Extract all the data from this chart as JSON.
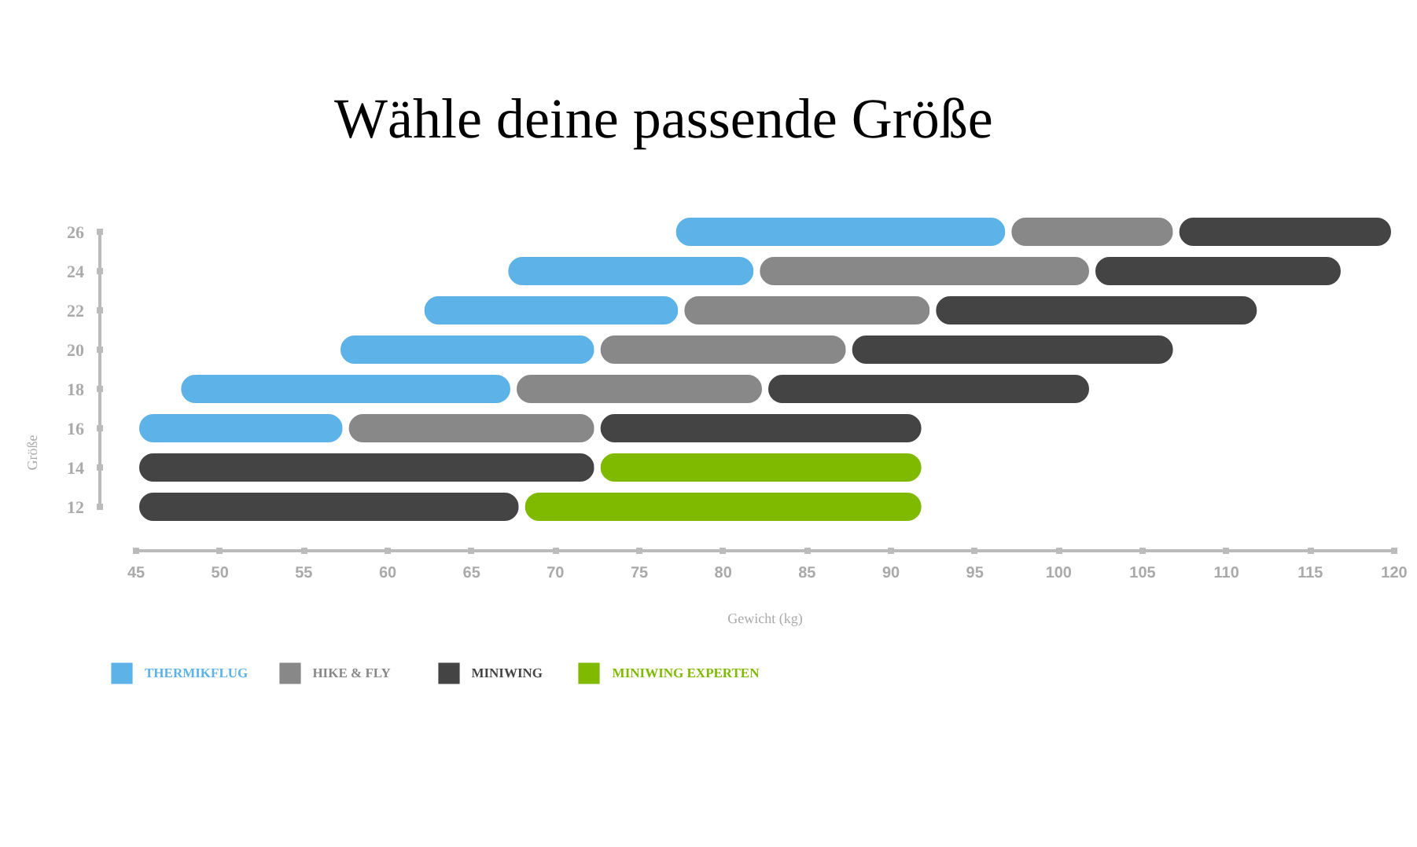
{
  "chart_data": {
    "type": "bar",
    "orientation": "horizontal",
    "title": "Wähle deine passende Größe",
    "xlabel": "Gewicht (kg)",
    "ylabel": "Größe",
    "categories": [
      "26",
      "24",
      "22",
      "20",
      "18",
      "16",
      "14",
      "12"
    ],
    "xlim": [
      45,
      120
    ],
    "xticks": [
      45,
      50,
      55,
      60,
      65,
      70,
      75,
      80,
      85,
      90,
      95,
      100,
      105,
      110,
      115,
      120
    ],
    "grid": false,
    "legend": "bottom left",
    "series": [
      {
        "name": "THERMIKFLUG",
        "color": "#5db3e8",
        "base": [
          77,
          67,
          62,
          57,
          47.5,
          45,
          null,
          null
        ],
        "values": [
          20,
          15,
          15.5,
          15.5,
          20,
          12.5,
          null,
          null
        ]
      },
      {
        "name": "HIKE & FLY",
        "color": "#888888",
        "base": [
          97,
          82,
          77.5,
          72.5,
          67.5,
          57.5,
          null,
          null
        ],
        "values": [
          10,
          20,
          15,
          15,
          15,
          15,
          null,
          null
        ]
      },
      {
        "name": "MINIWING",
        "color": "#444444",
        "base": [
          107,
          102,
          92.5,
          87.5,
          82.5,
          72.5,
          45,
          45
        ],
        "values": [
          13,
          15,
          19.5,
          19.5,
          19.5,
          19.5,
          27.5,
          23
        ]
      },
      {
        "name": "MINIWING EXPERTEN",
        "color": "#7fba00",
        "base": [
          null,
          null,
          null,
          null,
          null,
          null,
          72.5,
          68
        ],
        "values": [
          null,
          null,
          null,
          null,
          null,
          null,
          19.5,
          24
        ]
      }
    ]
  }
}
